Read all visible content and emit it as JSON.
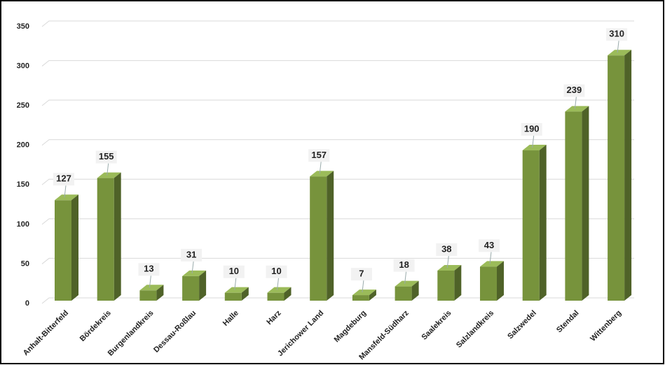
{
  "chart_data": {
    "type": "bar",
    "categories": [
      "Anhalt-Bitterfeld",
      "Bördekreis",
      "Burgenlandkreis",
      "Dessau-Roßlau",
      "Halle",
      "Harz",
      "Jerichower Land",
      "Magdeburg",
      "Mansfeld-Südharz",
      "Saalekreis",
      "Salzlandkreis",
      "Salzwedel",
      "Stendal",
      "Wittenberg"
    ],
    "values": [
      127,
      155,
      13,
      31,
      10,
      10,
      157,
      7,
      18,
      38,
      43,
      190,
      239,
      310
    ],
    "color": "#77933c",
    "ylim": [
      0,
      350
    ],
    "yticks": [
      0,
      50,
      100,
      150,
      200,
      250,
      300,
      350
    ],
    "grid": true
  }
}
